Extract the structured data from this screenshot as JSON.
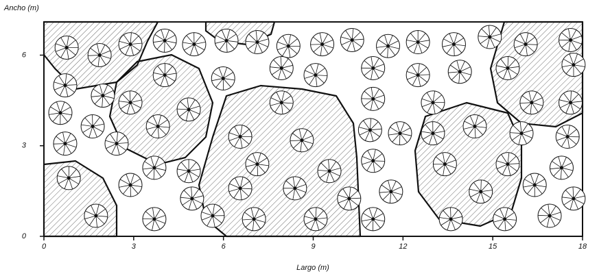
{
  "chart_data": {
    "type": "scatter",
    "x_label": "Largo (m)",
    "y_label": "Ancho (m)",
    "xlim": [
      0,
      18
    ],
    "ylim": [
      0,
      7.1
    ],
    "xticks": [
      0,
      3,
      6,
      9,
      12,
      15,
      18
    ],
    "yticks": [
      0,
      3,
      6
    ],
    "x": [
      0.76,
      1.86,
      2.89,
      4.04,
      5.02,
      6.1,
      7.13,
      8.17,
      9.3,
      10.3,
      11.5,
      12.5,
      13.7,
      14.9,
      16.1,
      17.6,
      0.71,
      1.97,
      4.04,
      5.99,
      7.94,
      9.08,
      11.0,
      12.5,
      13.9,
      15.5,
      17.7,
      2.89,
      7.94,
      11.0,
      13.0,
      16.3,
      17.6,
      0.55,
      1.63,
      3.81,
      4.84,
      6.56,
      8.62,
      10.9,
      11.9,
      13.0,
      14.4,
      15.96,
      17.5,
      0.71,
      2.43,
      3.69,
      4.84,
      7.13,
      9.54,
      11.0,
      13.4,
      15.5,
      17.3,
      0.83,
      2.89,
      4.95,
      6.56,
      8.39,
      10.2,
      11.6,
      14.6,
      16.4,
      17.7,
      1.74,
      3.69,
      5.64,
      7.02,
      9.08,
      11.0,
      13.6,
      15.4,
      16.9
    ],
    "y": [
      6.25,
      6.0,
      6.36,
      6.48,
      6.36,
      6.48,
      6.43,
      6.3,
      6.36,
      6.5,
      6.3,
      6.43,
      6.36,
      6.6,
      6.36,
      6.5,
      5.0,
      4.66,
      5.34,
      5.23,
      5.57,
      5.34,
      5.57,
      5.34,
      5.45,
      5.57,
      5.68,
      4.43,
      4.43,
      4.55,
      4.43,
      4.43,
      4.43,
      4.09,
      3.64,
      3.64,
      4.2,
      3.3,
      3.18,
      3.52,
      3.41,
      3.41,
      3.64,
      3.41,
      3.3,
      3.07,
      3.07,
      2.27,
      2.16,
      2.39,
      2.16,
      2.5,
      2.39,
      2.39,
      2.27,
      1.93,
      1.7,
      1.25,
      1.59,
      1.59,
      1.25,
      1.48,
      1.48,
      1.7,
      1.25,
      0.68,
      0.57,
      0.68,
      0.57,
      0.57,
      0.57,
      0.57,
      0.57,
      0.68
    ]
  }
}
